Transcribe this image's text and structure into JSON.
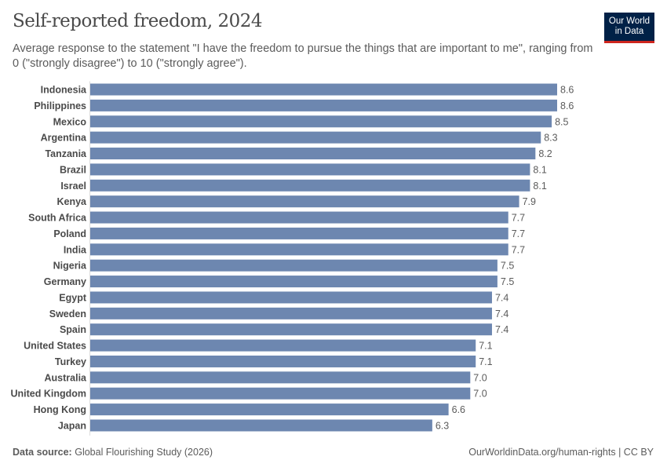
{
  "header": {
    "title": "Self-reported freedom, 2024",
    "subtitle": "Average response to the statement \"I have the freedom to pursue the things that are important to me\", ranging from 0 (\"strongly disagree\") to 10 (\"strongly agree\").",
    "logo_line1": "Our World",
    "logo_line2": "in Data"
  },
  "footer": {
    "source_label": "Data source:",
    "source": "Global Flourishing Study (2026)",
    "url": "OurWorldinData.org/human-rights | CC BY"
  },
  "chart_data": {
    "type": "bar",
    "orientation": "horizontal",
    "bar_color": "#6d87b0",
    "categories": [
      "Indonesia",
      "Philippines",
      "Mexico",
      "Argentina",
      "Tanzania",
      "Brazil",
      "Israel",
      "Kenya",
      "South Africa",
      "Poland",
      "India",
      "Nigeria",
      "Germany",
      "Egypt",
      "Sweden",
      "Spain",
      "United States",
      "Turkey",
      "Australia",
      "United Kingdom",
      "Hong Kong",
      "Japan"
    ],
    "values": [
      8.6,
      8.6,
      8.5,
      8.3,
      8.2,
      8.1,
      8.1,
      7.9,
      7.7,
      7.7,
      7.7,
      7.5,
      7.5,
      7.4,
      7.4,
      7.4,
      7.1,
      7.1,
      7.0,
      7.0,
      6.6,
      6.3
    ],
    "labels": [
      "8.6",
      "8.6",
      "8.5",
      "8.3",
      "8.2",
      "8.1",
      "8.1",
      "7.9",
      "7.7",
      "7.7",
      "7.7",
      "7.5",
      "7.5",
      "7.4",
      "7.4",
      "7.4",
      "7.1",
      "7.1",
      "7.0",
      "7.0",
      "6.6",
      "6.3"
    ],
    "xlim": [
      0,
      8.6
    ]
  }
}
